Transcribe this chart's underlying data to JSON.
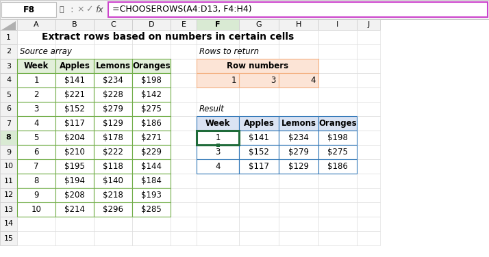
{
  "title": "Extract rows based on numbers in certain cells",
  "formula_bar_cell": "F8",
  "formula_bar_text": "=CHOOSEROWS(A4:D13, F4:H4)",
  "col_labels": [
    "A",
    "B",
    "C",
    "D",
    "E",
    "F",
    "G",
    "H",
    "I",
    "J"
  ],
  "source_header": [
    "Week",
    "Apples",
    "Lemons",
    "Oranges"
  ],
  "source_data": [
    [
      "1",
      "$141",
      "$234",
      "$198"
    ],
    [
      "2",
      "$221",
      "$228",
      "$142"
    ],
    [
      "3",
      "$152",
      "$279",
      "$275"
    ],
    [
      "4",
      "$117",
      "$129",
      "$186"
    ],
    [
      "5",
      "$204",
      "$178",
      "$271"
    ],
    [
      "6",
      "$210",
      "$222",
      "$229"
    ],
    [
      "7",
      "$195",
      "$118",
      "$144"
    ],
    [
      "8",
      "$194",
      "$140",
      "$184"
    ],
    [
      "9",
      "$208",
      "$218",
      "$193"
    ],
    [
      "10",
      "$214",
      "$296",
      "$285"
    ]
  ],
  "rows_to_return_label": "Rows to return",
  "row_numbers_header": "Row numbers",
  "row_numbers": [
    "1",
    "3",
    "4"
  ],
  "result_label": "Result",
  "result_header": [
    "Week",
    "Apples",
    "Lemons",
    "Oranges"
  ],
  "result_data": [
    [
      "1",
      "$141",
      "$234",
      "$198"
    ],
    [
      "3",
      "$152",
      "$279",
      "$275"
    ],
    [
      "4",
      "$117",
      "$129",
      "$186"
    ]
  ],
  "source_label": "Source array",
  "n_rows": 15,
  "bg_color": "#ffffff",
  "header_source_bg": "#e2efda",
  "header_source_border": "#70ad47",
  "source_border": "#70ad47",
  "header_rows_bg": "#fce4d6",
  "header_rows_border": "#f4b183",
  "result_header_bg": "#dae3f3",
  "result_border": "#2e75b6",
  "selected_cell_border": "#1f6b3a",
  "formula_bar_border": "#cc44cc",
  "col_header_selected_bg": "#d9ead3",
  "col_header_default_bg": "#f2f2f2",
  "row_header_selected_bg": "#d9ead3",
  "row_header_default_bg": "#f2f2f2",
  "grid_color": "#d8d8d8",
  "cell_bg": "#ffffff"
}
